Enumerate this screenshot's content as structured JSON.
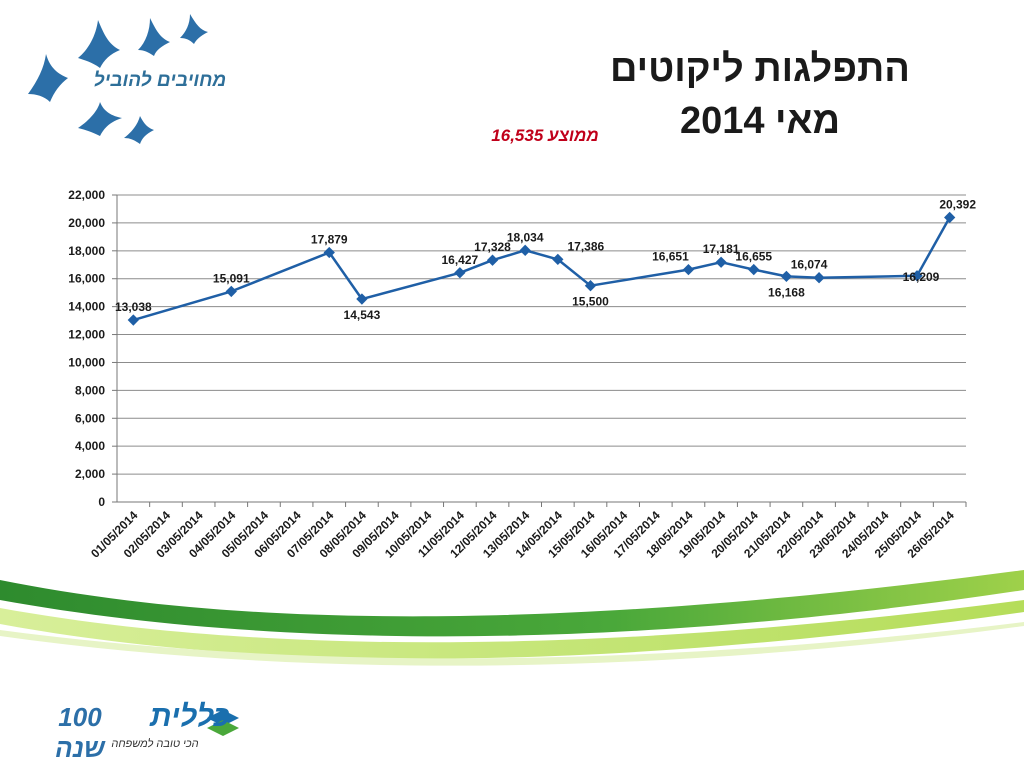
{
  "header": {
    "title_line1": "התפלגות ליקוטים",
    "title_line2": "מאי 2014",
    "average_label": "ממוצע 16,535"
  },
  "logo": {
    "slogan": "מחויבים להוביל",
    "bird_color": "#2c6fa8"
  },
  "footer": {
    "brand": "כללית",
    "years": "100 שנה",
    "tagline": "הכי טובה למשפחה"
  },
  "colors": {
    "line": "#1f5fa6",
    "grid": "#8c8c8c",
    "green_dark": "#2e8b2e",
    "green_light": "#b5dd5a"
  },
  "chart_data": {
    "type": "line",
    "categories": [
      "01/05/2014",
      "02/05/2014",
      "03/05/2014",
      "04/05/2014",
      "05/05/2014",
      "06/05/2014",
      "07/05/2014",
      "08/05/2014",
      "09/05/2014",
      "10/05/2014",
      "11/05/2014",
      "12/05/2014",
      "13/05/2014",
      "14/05/2014",
      "15/05/2014",
      "16/05/2014",
      "17/05/2014",
      "18/05/2014",
      "19/05/2014",
      "20/05/2014",
      "21/05/2014",
      "22/05/2014",
      "23/05/2014",
      "24/05/2014",
      "25/05/2014",
      "26/05/2014"
    ],
    "points": [
      {
        "x": "01/05/2014",
        "y": 13038,
        "label": "13,038"
      },
      {
        "x": "04/05/2014",
        "y": 15091,
        "label": "15,091"
      },
      {
        "x": "07/05/2014",
        "y": 17879,
        "label": "17,879"
      },
      {
        "x": "08/05/2014",
        "y": 14543,
        "label": "14,543"
      },
      {
        "x": "11/05/2014",
        "y": 16427,
        "label": "16,427"
      },
      {
        "x": "12/05/2014",
        "y": 17328,
        "label": "17,328"
      },
      {
        "x": "13/05/2014",
        "y": 18034,
        "label": "18,034"
      },
      {
        "x": "14/05/2014",
        "y": 17386,
        "label": "17,386"
      },
      {
        "x": "15/05/2014",
        "y": 15500,
        "label": "15,500"
      },
      {
        "x": "18/05/2014",
        "y": 16651,
        "label": "16,651"
      },
      {
        "x": "19/05/2014",
        "y": 17181,
        "label": "17,181"
      },
      {
        "x": "20/05/2014",
        "y": 16655,
        "label": "16,655"
      },
      {
        "x": "21/05/2014",
        "y": 16168,
        "label": "16,168"
      },
      {
        "x": "22/05/2014",
        "y": 16074,
        "label": "16,074"
      },
      {
        "x": "25/05/2014",
        "y": 16209,
        "label": "16,209"
      },
      {
        "x": "26/05/2014",
        "y": 20392,
        "label": "20,392"
      }
    ],
    "yticks": [
      "0",
      "2,000",
      "4,000",
      "6,000",
      "8,000",
      "10,000",
      "12,000",
      "14,000",
      "16,000",
      "18,000",
      "20,000",
      "22,000"
    ],
    "ylim": [
      0,
      22000
    ],
    "grid": true,
    "legend": "none"
  }
}
